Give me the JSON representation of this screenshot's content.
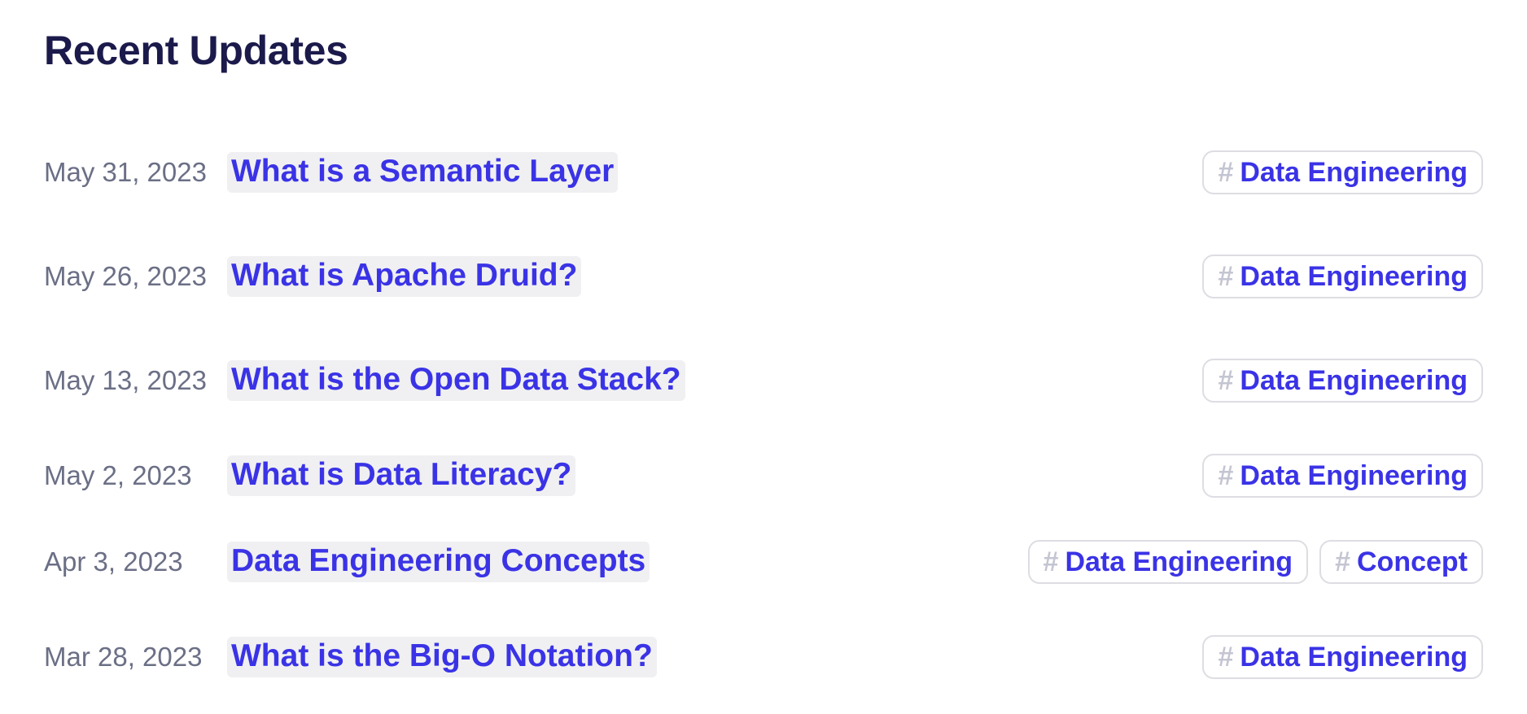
{
  "page": {
    "title": "Recent Updates"
  },
  "updates": [
    {
      "date": "May 31, 2023",
      "title": "What is a Semantic Layer",
      "tags": [
        "Data Engineering"
      ]
    },
    {
      "date": "May 26, 2023",
      "title": "What is Apache Druid?",
      "tags": [
        "Data Engineering"
      ]
    },
    {
      "date": "May 13, 2023",
      "title": "What is the Open Data Stack?",
      "tags": [
        "Data Engineering"
      ]
    },
    {
      "date": "May 2, 2023",
      "title": "What is Data Literacy?",
      "tags": [
        "Data Engineering"
      ]
    },
    {
      "date": "Apr 3, 2023",
      "title": "Data Engineering Concepts",
      "tags": [
        "Data Engineering",
        "Concept"
      ]
    },
    {
      "date": "Mar 28, 2023",
      "title": "What is the Big-O Notation?",
      "tags": [
        "Data Engineering"
      ]
    }
  ],
  "icons": {
    "tag": "hash-icon"
  },
  "colors": {
    "heading": "#1b1a4b",
    "link": "#3a33e6",
    "date": "#6b6f86",
    "link_highlight": "#f0f0f2",
    "tag_border": "#dddde3",
    "hash": "#c4c5d2"
  }
}
